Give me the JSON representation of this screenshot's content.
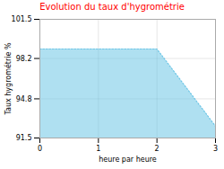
{
  "chart_data": {
    "type": "area",
    "title": "Evolution du taux d'hygrométrie",
    "xlabel": "heure par heure",
    "ylabel": "Taux hygrométrie %",
    "x": [
      0,
      2,
      3
    ],
    "values": [
      99.0,
      99.0,
      92.5
    ],
    "color": "#6ec6e6",
    "line_style": "dotted",
    "xlim": [
      0,
      3
    ],
    "xticks": [
      0,
      1,
      2,
      3
    ],
    "ylim": [
      91.5,
      101.5
    ],
    "yticks": [
      91.5,
      94.8,
      98.2,
      101.5
    ],
    "grid": true
  }
}
